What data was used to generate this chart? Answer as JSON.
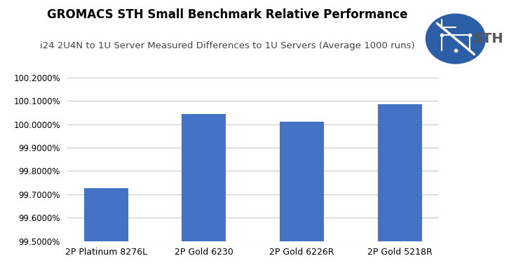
{
  "title": "GROMACS STH Small Benchmark Relative Performance",
  "subtitle": "i24 2U4N to 1U Server Measured Differences to 1U Servers (Average 1000 runs)",
  "categories": [
    "2P Platinum 8276L",
    "2P Gold 6230",
    "2P Gold 6226R",
    "2P Gold 5218R"
  ],
  "values": [
    99.725,
    100.045,
    100.01,
    100.085
  ],
  "bar_color": "#4472C4",
  "ylim_min": 99.5,
  "ylim_max": 100.2,
  "yticks": [
    99.5,
    99.6,
    99.7,
    99.8,
    99.9,
    100.0,
    100.1,
    100.2
  ],
  "bg_color": "#ffffff",
  "grid_color": "#c8c8c8",
  "title_fontsize": 12,
  "subtitle_fontsize": 9.5,
  "tick_fontsize": 8.5,
  "xlabel_fontsize": 9
}
